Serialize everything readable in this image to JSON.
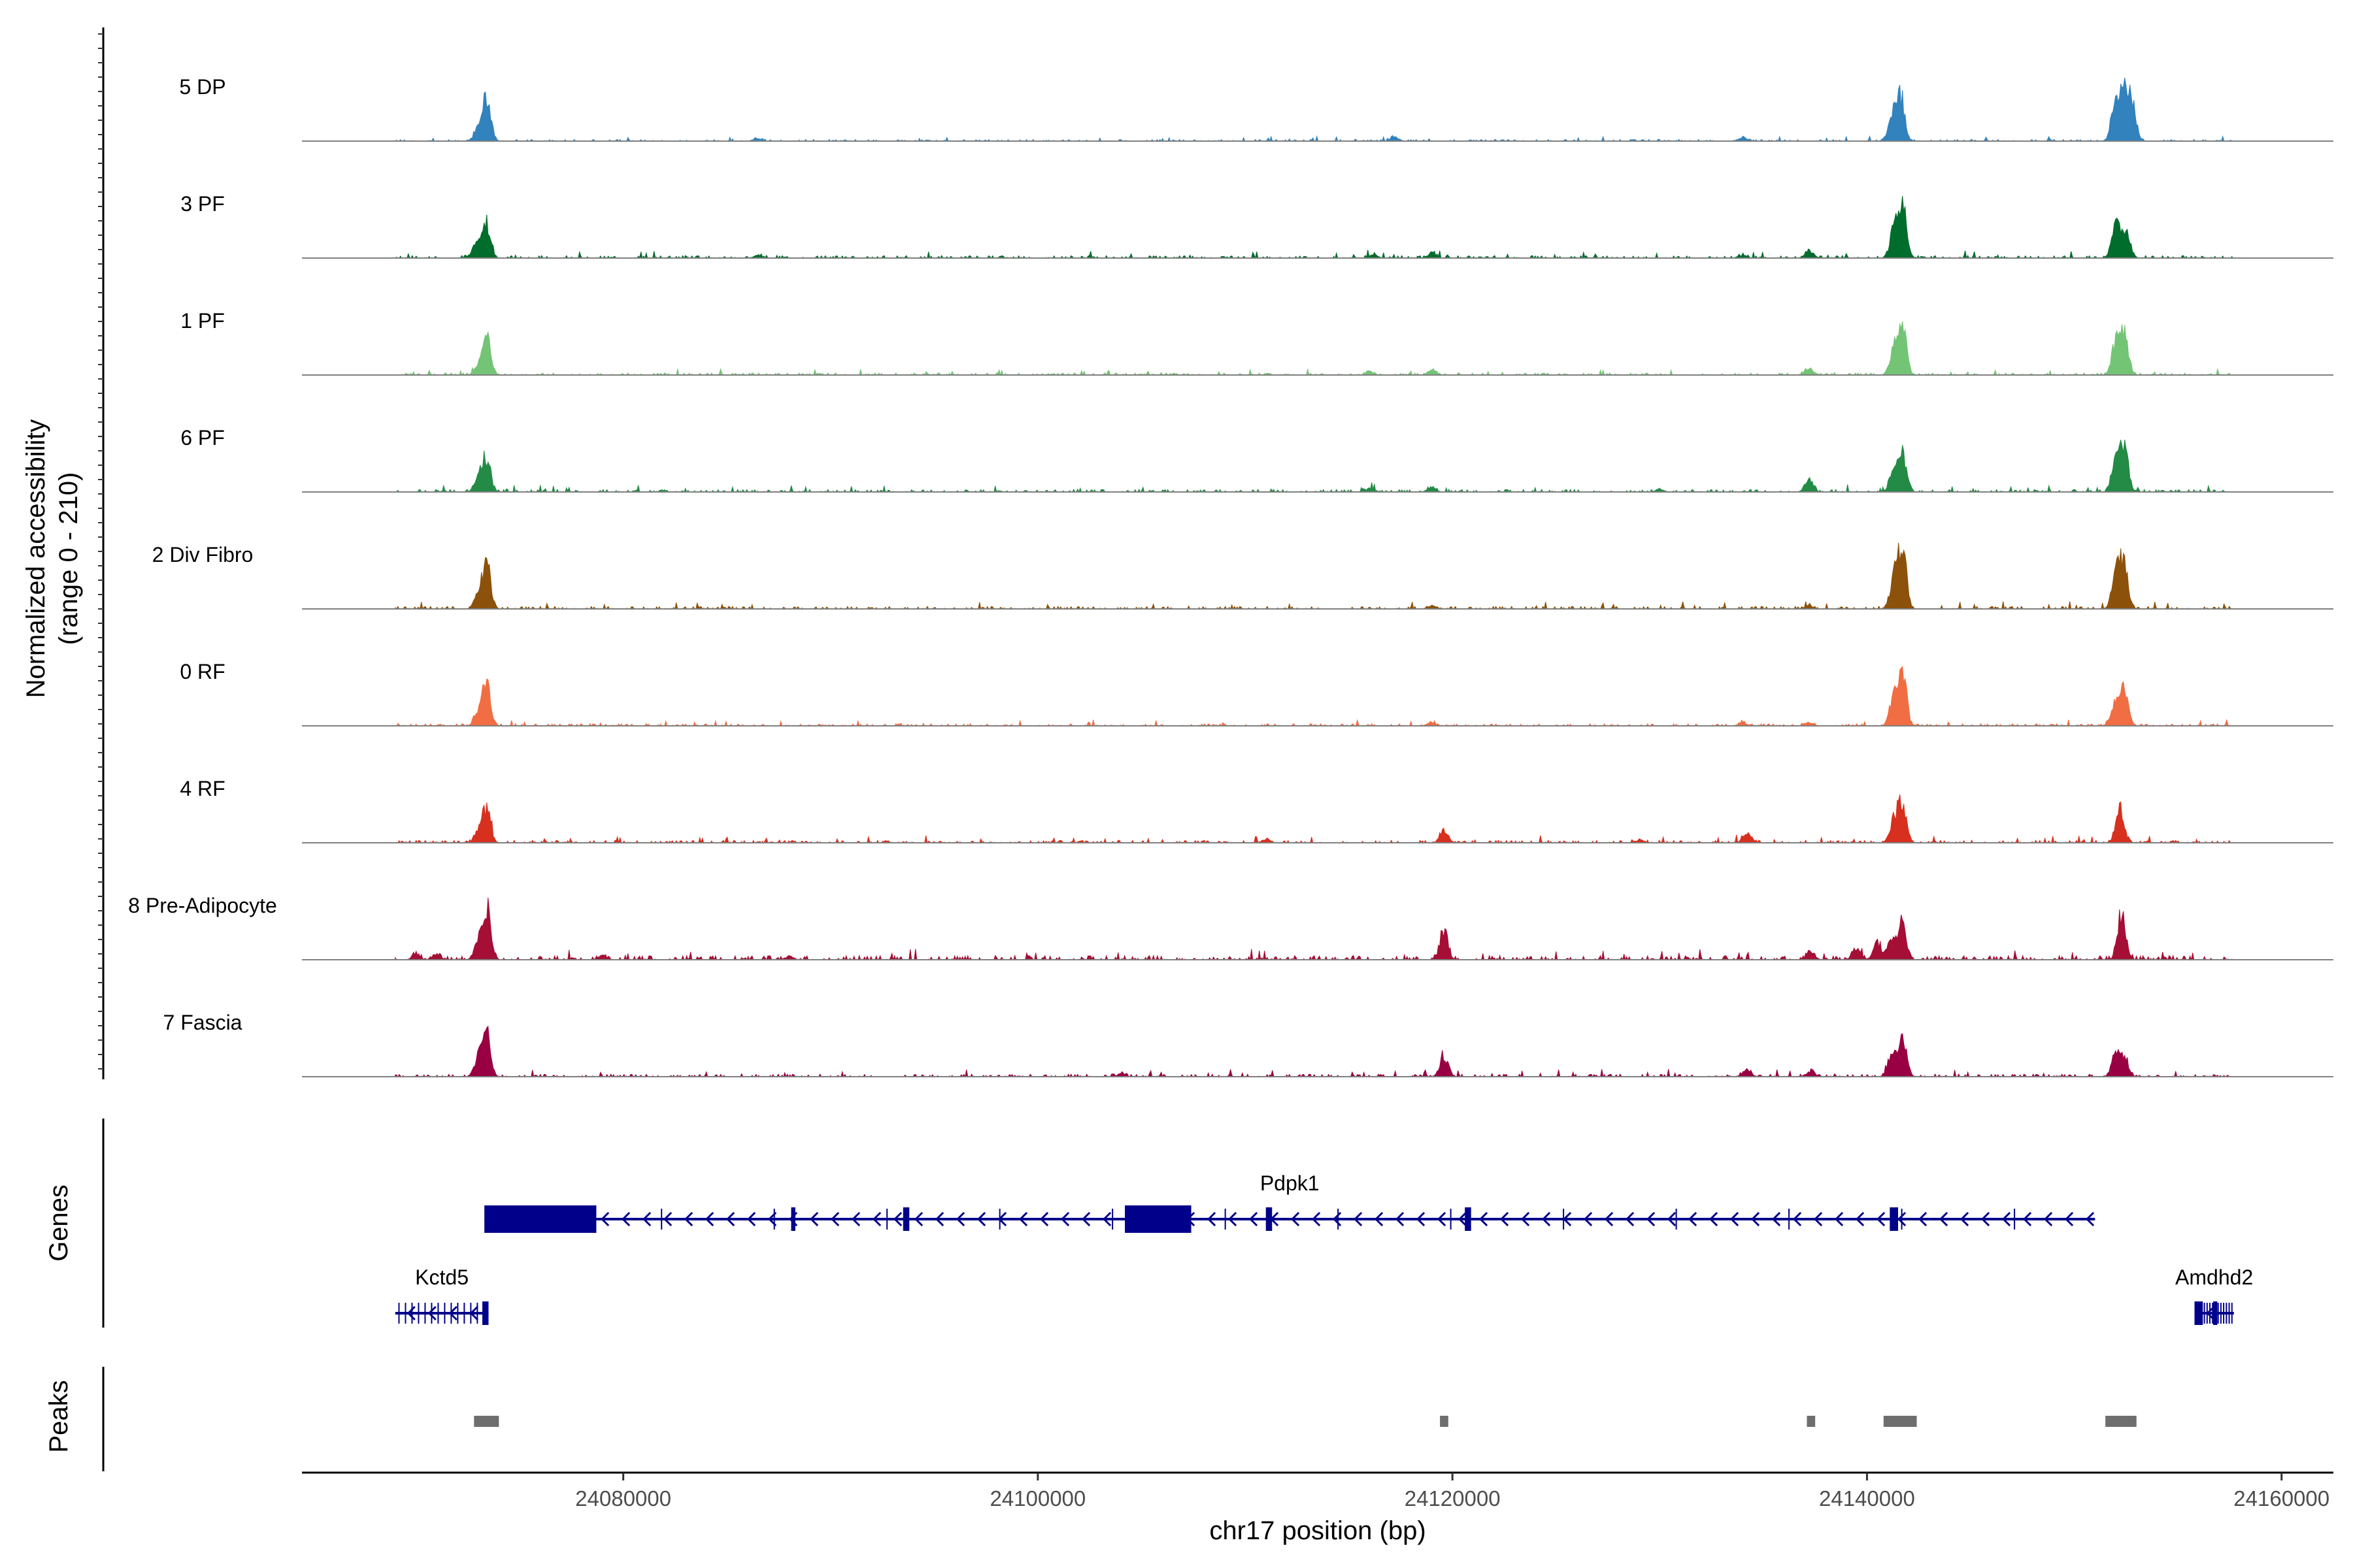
{
  "chart_data": {
    "type": "area",
    "x_axis": {
      "label": "chr17 position (bp)",
      "range": [
        24064500,
        24162500
      ],
      "ticks": [
        24080000,
        24100000,
        24120000,
        24140000,
        24160000
      ],
      "tick_labels": [
        "24080000",
        "24100000",
        "24120000",
        "24140000",
        "24160000"
      ]
    },
    "y_axis": {
      "label_line1": "Normalized accessibility",
      "label_line2": "(range 0 - 210)",
      "range": [
        0,
        210
      ]
    },
    "grid": false,
    "region": {
      "start": 24069000,
      "end": 24157700
    },
    "tracks": [
      {
        "name": "5 DP",
        "color": "#3182bd",
        "noise": 0.02,
        "peaks": [
          [
            24073400,
            0.62
          ],
          [
            24073000,
            0.18
          ],
          [
            24141600,
            0.7
          ],
          [
            24141200,
            0.32
          ],
          [
            24152000,
            0.62
          ],
          [
            24152400,
            0.72
          ],
          [
            24152800,
            0.55
          ],
          [
            24117200,
            0.06
          ],
          [
            24134000,
            0.06
          ],
          [
            24086500,
            0.04
          ]
        ]
      },
      {
        "name": "3 PF",
        "color": "#006d2c",
        "noise": 0.03,
        "peaks": [
          [
            24073400,
            0.55
          ],
          [
            24072900,
            0.22
          ],
          [
            24141700,
            0.8
          ],
          [
            24141300,
            0.4
          ],
          [
            24152000,
            0.48
          ],
          [
            24152500,
            0.42
          ],
          [
            24137200,
            0.12
          ],
          [
            24119000,
            0.08
          ],
          [
            24116200,
            0.06
          ],
          [
            24134000,
            0.05
          ],
          [
            24086500,
            0.04
          ]
        ]
      },
      {
        "name": "1 PF",
        "color": "#74c476",
        "noise": 0.025,
        "peaks": [
          [
            24073400,
            0.55
          ],
          [
            24073000,
            0.12
          ],
          [
            24141700,
            0.75
          ],
          [
            24141300,
            0.35
          ],
          [
            24152000,
            0.45
          ],
          [
            24152400,
            0.58
          ],
          [
            24137200,
            0.1
          ],
          [
            24119000,
            0.08
          ],
          [
            24116000,
            0.05
          ]
        ]
      },
      {
        "name": "6 PF",
        "color": "#238b45",
        "noise": 0.03,
        "peaks": [
          [
            24073400,
            0.52
          ],
          [
            24073000,
            0.2
          ],
          [
            24141700,
            0.55
          ],
          [
            24141300,
            0.32
          ],
          [
            24152000,
            0.5
          ],
          [
            24152400,
            0.68
          ],
          [
            24137200,
            0.18
          ],
          [
            24119000,
            0.07
          ],
          [
            24130000,
            0.05
          ],
          [
            24116000,
            0.05
          ]
        ]
      },
      {
        "name": "2 Div Fibro",
        "color": "#8c510a",
        "noise": 0.03,
        "peaks": [
          [
            24073400,
            0.7
          ],
          [
            24073000,
            0.2
          ],
          [
            24141700,
            0.88
          ],
          [
            24141300,
            0.45
          ],
          [
            24152000,
            0.52
          ],
          [
            24152400,
            0.68
          ],
          [
            24119000,
            0.05
          ],
          [
            24137200,
            0.05
          ]
        ]
      },
      {
        "name": "0 RF",
        "color": "#f16d43",
        "noise": 0.025,
        "peaks": [
          [
            24073400,
            0.65
          ],
          [
            24073000,
            0.2
          ],
          [
            24141700,
            0.82
          ],
          [
            24141300,
            0.45
          ],
          [
            24152000,
            0.38
          ],
          [
            24152400,
            0.5
          ],
          [
            24119000,
            0.06
          ],
          [
            24134000,
            0.05
          ],
          [
            24137200,
            0.05
          ]
        ]
      },
      {
        "name": "4 RF",
        "color": "#d7301f",
        "noise": 0.03,
        "peaks": [
          [
            24073400,
            0.5
          ],
          [
            24073000,
            0.15
          ],
          [
            24141700,
            0.6
          ],
          [
            24141300,
            0.35
          ],
          [
            24152200,
            0.5
          ],
          [
            24119600,
            0.18
          ],
          [
            24134200,
            0.14
          ],
          [
            24111000,
            0.05
          ],
          [
            24129000,
            0.04
          ]
        ]
      },
      {
        "name": "8 Pre-Adipocyte",
        "color": "#a50f35",
        "noise": 0.05,
        "peaks": [
          [
            24073400,
            0.8
          ],
          [
            24073000,
            0.25
          ],
          [
            24141700,
            0.52
          ],
          [
            24141200,
            0.3
          ],
          [
            24140500,
            0.25
          ],
          [
            24139500,
            0.18
          ],
          [
            24152300,
            0.72
          ],
          [
            24119600,
            0.4
          ],
          [
            24137300,
            0.12
          ],
          [
            24070000,
            0.07
          ],
          [
            24071000,
            0.06
          ],
          [
            24079000,
            0.06
          ],
          [
            24088000,
            0.05
          ]
        ]
      },
      {
        "name": "7 Fascia",
        "color": "#980043",
        "noise": 0.03,
        "peaks": [
          [
            24073400,
            0.65
          ],
          [
            24073000,
            0.25
          ],
          [
            24141700,
            0.68
          ],
          [
            24141200,
            0.35
          ],
          [
            24152000,
            0.3
          ],
          [
            24152400,
            0.28
          ],
          [
            24119600,
            0.32
          ],
          [
            24134200,
            0.12
          ],
          [
            24137300,
            0.08
          ],
          [
            24104000,
            0.04
          ]
        ]
      }
    ],
    "genes_panel": {
      "title": "Genes",
      "color": "#00008b",
      "genes": [
        {
          "name": "Pdpk1",
          "start": 24073300,
          "end": 24151000,
          "strand": "-",
          "row": 0,
          "exons": [
            [
              24073300,
              24078700
            ],
            [
              24104200,
              24107400
            ],
            [
              24111000,
              24111300
            ],
            [
              24120600,
              24120900
            ],
            [
              24141100,
              24141500
            ],
            [
              24088100,
              24088300
            ],
            [
              24093500,
              24093800
            ]
          ]
        },
        {
          "name": "Kctd5",
          "start": 24069000,
          "end": 24073500,
          "strand": "-",
          "row": 1,
          "exons": [
            [
              24073200,
              24073500
            ]
          ]
        },
        {
          "name": "Amdhd2",
          "start": 24155800,
          "end": 24157700,
          "strand": "-",
          "row": 1,
          "exons": [
            [
              24155800,
              24156200
            ],
            [
              24156700,
              24156900
            ]
          ]
        }
      ]
    },
    "peaks_panel": {
      "title": "Peaks",
      "color": "#6e6e6e",
      "peaks": [
        [
          24072800,
          24074000
        ],
        [
          24119400,
          24119800
        ],
        [
          24137100,
          24137500
        ],
        [
          24140800,
          24142400
        ],
        [
          24151500,
          24153000
        ]
      ]
    }
  }
}
